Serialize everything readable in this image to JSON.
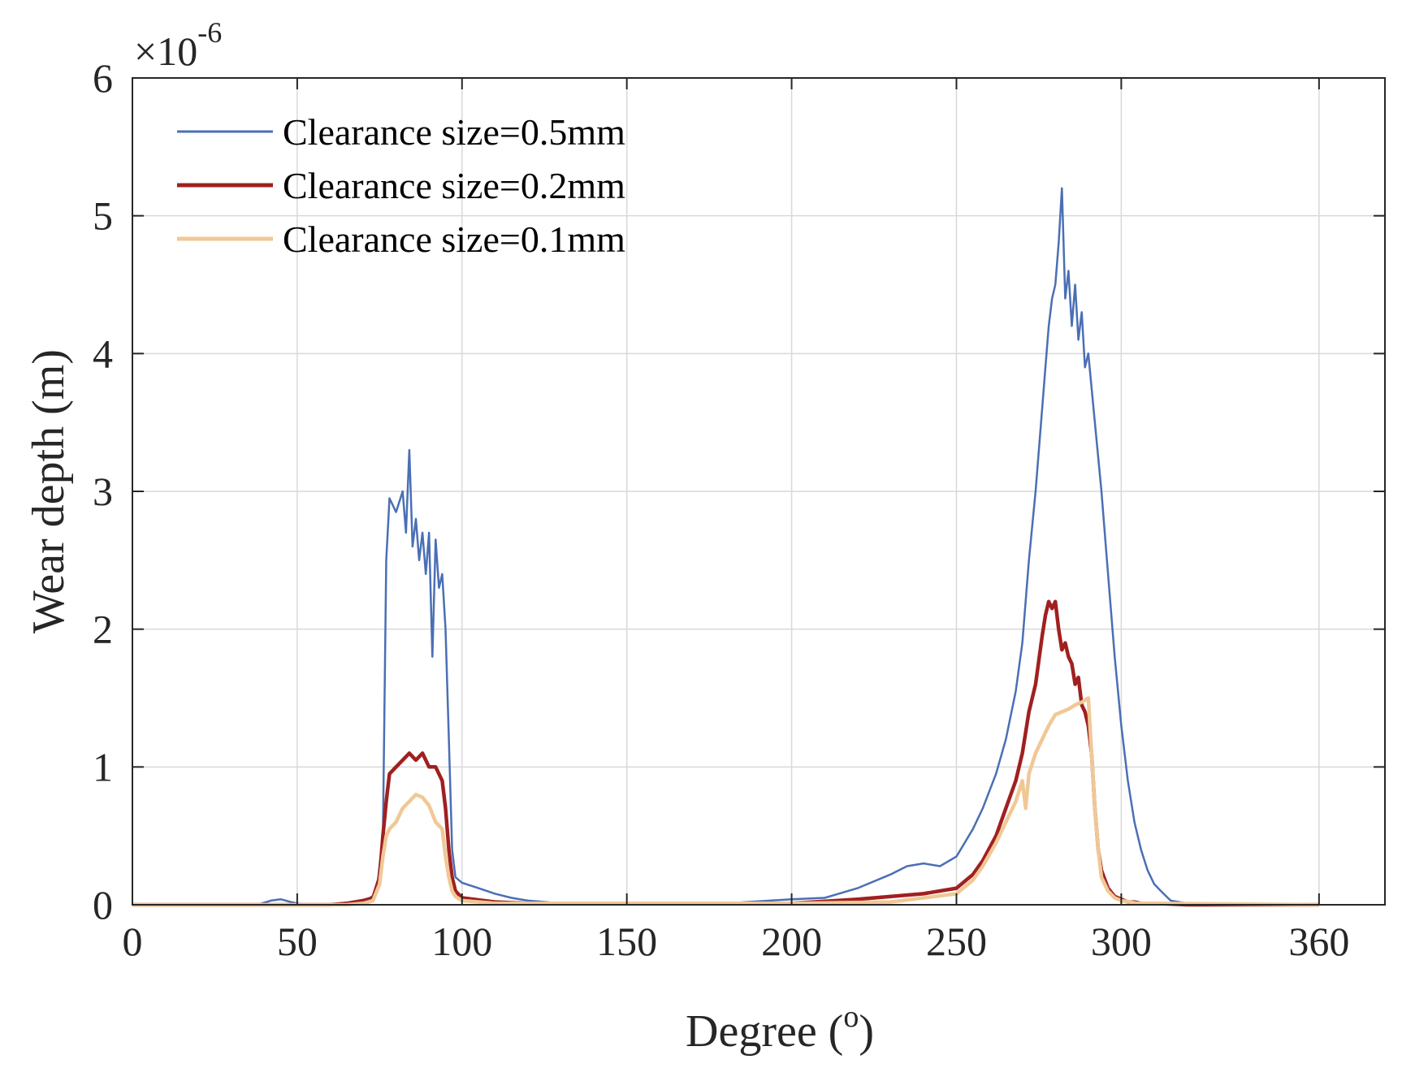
{
  "chart_data": {
    "type": "line",
    "title": "",
    "xlabel": "Degree (",
    "xlabel_sup": "o",
    "xlabel_suffix": ")",
    "ylabel": "Wear depth (m)",
    "y_exponent_prefix": "×10",
    "y_exponent_power": "-6",
    "xlim": [
      0,
      380
    ],
    "ylim": [
      0,
      6
    ],
    "xticks": [
      0,
      50,
      100,
      150,
      200,
      250,
      300,
      360
    ],
    "xtick_labels": [
      "0",
      "50",
      "100",
      "150",
      "200",
      "250",
      "300",
      "360"
    ],
    "yticks": [
      0,
      1,
      2,
      3,
      4,
      5,
      6
    ],
    "ytick_labels": [
      "0",
      "1",
      "2",
      "3",
      "4",
      "5",
      "6"
    ],
    "y_units_scale": 1e-06,
    "grid": true,
    "legend_position": "top-left",
    "series": [
      {
        "name": "Clearance size=0.5mm",
        "color": "#4a6fb5",
        "x": [
          0,
          38,
          42,
          45,
          48,
          52,
          60,
          70,
          74,
          76,
          77,
          78,
          80,
          82,
          83,
          84,
          85,
          86,
          87,
          88,
          89,
          90,
          91,
          92,
          93,
          94,
          95,
          96,
          97,
          98,
          100,
          105,
          110,
          115,
          120,
          130,
          150,
          180,
          200,
          210,
          220,
          230,
          235,
          240,
          245,
          250,
          255,
          258,
          262,
          265,
          268,
          270,
          272,
          274,
          276,
          277,
          278,
          279,
          280,
          281,
          282,
          283,
          284,
          285,
          286,
          287,
          288,
          289,
          290,
          292,
          294,
          296,
          298,
          300,
          302,
          304,
          306,
          308,
          310,
          312,
          315,
          320,
          360
        ],
        "y": [
          0,
          0,
          0.03,
          0.04,
          0.02,
          0,
          0,
          0.02,
          0.08,
          0.5,
          2.5,
          2.95,
          2.85,
          3.0,
          2.7,
          3.3,
          2.6,
          2.8,
          2.5,
          2.7,
          2.4,
          2.7,
          1.8,
          2.65,
          2.3,
          2.4,
          2.0,
          1.2,
          0.4,
          0.2,
          0.16,
          0.12,
          0.08,
          0.05,
          0.03,
          0.01,
          0.01,
          0.01,
          0.04,
          0.05,
          0.12,
          0.22,
          0.28,
          0.3,
          0.28,
          0.35,
          0.55,
          0.7,
          0.95,
          1.2,
          1.55,
          1.9,
          2.5,
          3.0,
          3.6,
          3.9,
          4.2,
          4.4,
          4.5,
          4.8,
          5.2,
          4.4,
          4.6,
          4.2,
          4.5,
          4.1,
          4.3,
          3.9,
          4.0,
          3.5,
          3.0,
          2.4,
          1.8,
          1.3,
          0.9,
          0.6,
          0.4,
          0.25,
          0.15,
          0.1,
          0.03,
          0.01,
          0
        ]
      },
      {
        "name": "Clearance size=0.2mm",
        "color": "#a02020",
        "x": [
          0,
          60,
          65,
          70,
          73,
          75,
          76,
          77,
          78,
          80,
          82,
          84,
          86,
          88,
          90,
          92,
          94,
          95,
          96,
          97,
          98,
          100,
          110,
          120,
          200,
          220,
          240,
          250,
          255,
          258,
          262,
          265,
          268,
          270,
          272,
          274,
          276,
          277,
          278,
          279,
          280,
          281,
          282,
          283,
          284,
          285,
          286,
          287,
          288,
          289,
          290,
          291,
          292,
          293,
          294,
          296,
          298,
          300,
          302,
          304,
          306,
          310,
          320,
          360
        ],
        "y": [
          0,
          0,
          0.01,
          0.03,
          0.05,
          0.2,
          0.5,
          0.75,
          0.95,
          1.0,
          1.05,
          1.1,
          1.05,
          1.1,
          1.0,
          1.0,
          0.9,
          0.7,
          0.4,
          0.2,
          0.1,
          0.05,
          0.02,
          0.01,
          0.01,
          0.04,
          0.08,
          0.12,
          0.22,
          0.32,
          0.5,
          0.7,
          0.9,
          1.1,
          1.4,
          1.6,
          1.95,
          2.1,
          2.2,
          2.15,
          2.2,
          2.0,
          1.85,
          1.9,
          1.8,
          1.75,
          1.6,
          1.65,
          1.45,
          1.4,
          1.3,
          1.1,
          0.7,
          0.4,
          0.25,
          0.12,
          0.06,
          0.04,
          0.02,
          0.02,
          0.01,
          0.01,
          0,
          0
        ]
      },
      {
        "name": "Clearance size=0.1mm",
        "color": "#f0c896",
        "x": [
          0,
          65,
          70,
          73,
          75,
          76,
          77,
          78,
          80,
          82,
          84,
          86,
          88,
          90,
          92,
          94,
          95,
          96,
          97,
          98,
          100,
          110,
          120,
          200,
          230,
          250,
          255,
          258,
          262,
          265,
          268,
          270,
          271,
          272,
          274,
          276,
          278,
          280,
          282,
          284,
          286,
          288,
          290,
          291,
          292,
          293,
          294,
          296,
          298,
          300,
          305,
          310,
          360
        ],
        "y": [
          0,
          0,
          0.01,
          0.03,
          0.15,
          0.35,
          0.5,
          0.55,
          0.6,
          0.7,
          0.75,
          0.8,
          0.78,
          0.72,
          0.6,
          0.55,
          0.35,
          0.2,
          0.1,
          0.06,
          0.03,
          0.01,
          0.01,
          0.01,
          0.02,
          0.08,
          0.18,
          0.28,
          0.45,
          0.6,
          0.75,
          0.9,
          0.7,
          0.95,
          1.1,
          1.2,
          1.3,
          1.38,
          1.4,
          1.42,
          1.45,
          1.47,
          1.5,
          1.1,
          0.7,
          0.4,
          0.2,
          0.1,
          0.05,
          0.03,
          0.01,
          0.01,
          0
        ]
      }
    ]
  }
}
